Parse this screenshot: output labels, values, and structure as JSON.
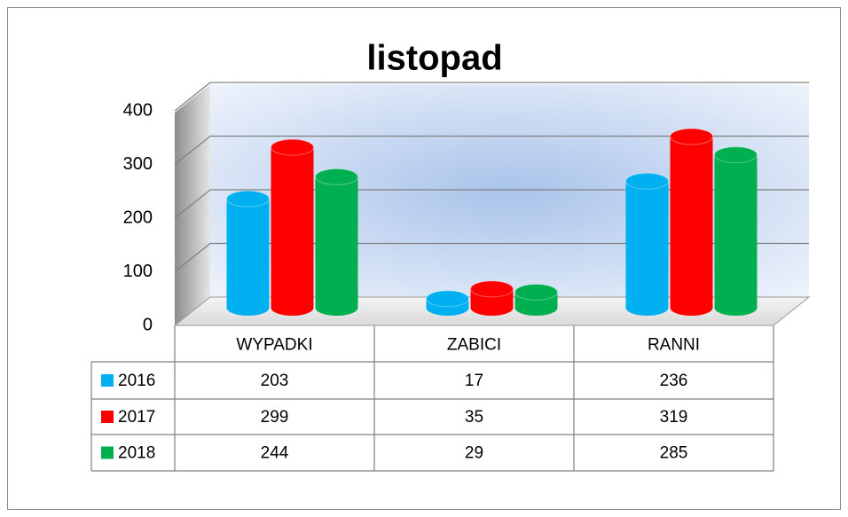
{
  "chart_data": {
    "type": "bar",
    "title": "listopad",
    "categories": [
      "WYPADKI",
      "ZABICI",
      "RANNI"
    ],
    "series": [
      {
        "name": "2016",
        "color": "#00b0f0",
        "values": [
          203,
          17,
          236
        ]
      },
      {
        "name": "2017",
        "color": "#ff0000",
        "values": [
          299,
          35,
          319
        ]
      },
      {
        "name": "2018",
        "color": "#00b050",
        "values": [
          244,
          29,
          285
        ]
      }
    ],
    "ylim": [
      0,
      400
    ],
    "yticks": [
      0,
      100,
      200,
      300,
      400
    ],
    "grid": true,
    "data_table": true
  }
}
